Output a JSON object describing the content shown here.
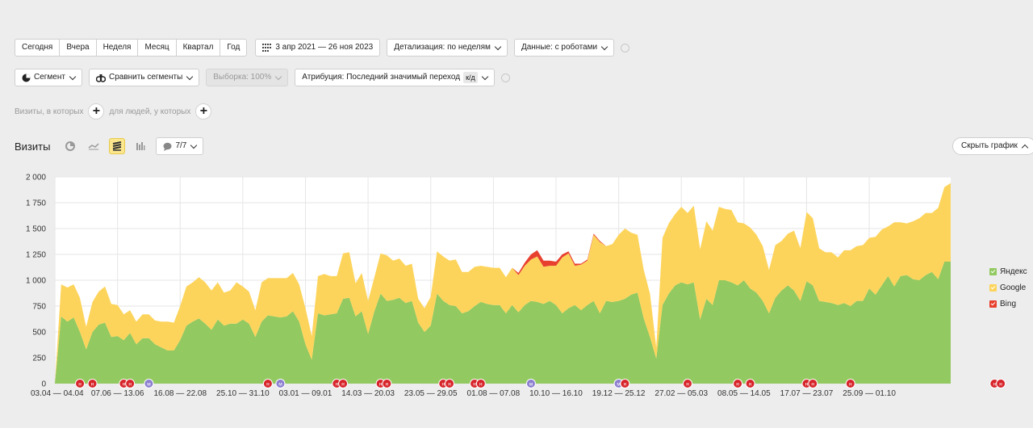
{
  "toolbar": {
    "periods": [
      "Сегодня",
      "Вчера",
      "Неделя",
      "Месяц",
      "Квартал",
      "Год"
    ],
    "date_range": "3 апр 2021 — 26 ноя 2023",
    "detail": "Детализация: по неделям",
    "data_mode": "Данные: с роботами",
    "segment": "Сегмент",
    "compare": "Сравнить сегменты",
    "sample": "Выборка: 100%",
    "attribution": "Атрибуция: Последний значимый переход",
    "attribution_badge": "к/д"
  },
  "filters": {
    "visits_label": "Визиты, в которых",
    "people_label": "для людей, у которых"
  },
  "report": {
    "title": "Визиты",
    "annotations_count": "7/7",
    "hide_chart": "Скрыть график"
  },
  "colors": {
    "yandex": "#92c960",
    "google": "#fdd45b",
    "bing": "#e8402f",
    "grid": "#e6e6e6"
  },
  "chart_data": {
    "type": "area",
    "stacked": true,
    "ylim": [
      0,
      2000
    ],
    "yticks": [
      0,
      250,
      500,
      750,
      1000,
      1250,
      1500,
      1750,
      2000
    ],
    "x_tick_labels": [
      "03.04 — 04.04",
      "07.06 — 13.06",
      "16.08 — 22.08",
      "25.10 — 31.10",
      "03.01 — 09.01",
      "14.03 — 20.03",
      "23.05 — 29.05",
      "01.08 — 07.08",
      "10.10 — 16.10",
      "19.12 — 25.12",
      "27.02 — 05.03",
      "08.05 — 14.05",
      "17.07 — 23.07",
      "25.09 — 01.10"
    ],
    "x_tick_positions": [
      0,
      10,
      20,
      30,
      40,
      50,
      60,
      70,
      80,
      90,
      100,
      110,
      120,
      130
    ],
    "series": [
      {
        "name": "Яндекс",
        "values": [
          0,
          650,
          600,
          640,
          500,
          330,
          500,
          570,
          590,
          450,
          460,
          420,
          490,
          380,
          440,
          440,
          380,
          350,
          320,
          320,
          420,
          560,
          600,
          630,
          580,
          520,
          620,
          560,
          580,
          580,
          620,
          580,
          450,
          600,
          660,
          650,
          640,
          650,
          700,
          600,
          380,
          230,
          680,
          660,
          670,
          680,
          820,
          830,
          650,
          700,
          480,
          700,
          870,
          800,
          810,
          830,
          780,
          800,
          590,
          500,
          560,
          870,
          800,
          760,
          750,
          680,
          700,
          750,
          790,
          770,
          760,
          760,
          680,
          760,
          690,
          760,
          800,
          790,
          770,
          800,
          760,
          680,
          730,
          760,
          710,
          760,
          800,
          680,
          800,
          790,
          800,
          820,
          860,
          880,
          630,
          450,
          240,
          760,
          870,
          950,
          980,
          960,
          980,
          620,
          820,
          760,
          1000,
          1000,
          980,
          950,
          1000,
          920,
          880,
          800,
          680,
          830,
          900,
          950,
          900,
          800,
          990,
          950,
          800,
          790,
          780,
          760,
          780,
          750,
          800,
          800,
          920,
          860,
          950,
          1040,
          940,
          1040,
          1050,
          1010,
          1000,
          1050,
          1080,
          1010,
          1180,
          1180
        ]
      },
      {
        "name": "Google",
        "values": [
          0,
          310,
          330,
          320,
          330,
          220,
          290,
          320,
          350,
          320,
          300,
          250,
          220,
          220,
          230,
          230,
          230,
          250,
          280,
          270,
          330,
          380,
          380,
          400,
          400,
          380,
          360,
          320,
          320,
          400,
          320,
          310,
          260,
          380,
          360,
          370,
          380,
          370,
          370,
          360,
          350,
          230,
          360,
          400,
          370,
          360,
          440,
          440,
          320,
          370,
          320,
          330,
          390,
          440,
          380,
          380,
          360,
          360,
          230,
          230,
          280,
          410,
          430,
          430,
          450,
          400,
          380,
          380,
          350,
          360,
          360,
          360,
          350,
          360,
          360,
          380,
          400,
          440,
          360,
          340,
          380,
          540,
          530,
          380,
          440,
          430,
          640,
          690,
          530,
          560,
          640,
          680,
          600,
          560,
          470,
          420,
          110,
          650,
          680,
          690,
          730,
          690,
          740,
          680,
          750,
          720,
          710,
          690,
          700,
          610,
          550,
          590,
          560,
          530,
          420,
          510,
          480,
          500,
          580,
          510,
          670,
          650,
          510,
          480,
          490,
          460,
          510,
          540,
          530,
          540,
          490,
          560,
          540,
          480,
          620,
          520,
          500,
          560,
          600,
          600,
          570,
          690,
          720,
          760
        ]
      },
      {
        "name": "Bing",
        "values": [
          0,
          0,
          0,
          0,
          0,
          0,
          0,
          0,
          0,
          0,
          0,
          0,
          0,
          0,
          0,
          0,
          0,
          0,
          0,
          0,
          0,
          0,
          0,
          0,
          0,
          0,
          0,
          0,
          0,
          0,
          0,
          0,
          0,
          0,
          0,
          0,
          0,
          0,
          0,
          0,
          0,
          0,
          0,
          0,
          0,
          0,
          0,
          0,
          0,
          0,
          0,
          0,
          0,
          0,
          0,
          0,
          0,
          0,
          0,
          0,
          0,
          0,
          0,
          0,
          0,
          0,
          0,
          0,
          0,
          0,
          0,
          0,
          0,
          0,
          20,
          30,
          50,
          60,
          60,
          50,
          40,
          30,
          20,
          20,
          10,
          10,
          10,
          10,
          0,
          0,
          0,
          0,
          0,
          0,
          0,
          0,
          0,
          0,
          0,
          0,
          0,
          0,
          0,
          0,
          0,
          0,
          0,
          0,
          0,
          0,
          0,
          0,
          0,
          0,
          0,
          0,
          0,
          0,
          0,
          0,
          0,
          0,
          0,
          0,
          0,
          0,
          0,
          0,
          0,
          0,
          0,
          0,
          0,
          0,
          0,
          0,
          0,
          0,
          0,
          0,
          0,
          0,
          0,
          0
        ]
      }
    ],
    "legend_position": "right",
    "grid": true,
    "annotation_markers": [
      {
        "i": 4,
        "t": "н",
        "c": "red"
      },
      {
        "i": 6,
        "t": "н",
        "c": "red"
      },
      {
        "i": 11,
        "t": "н",
        "c": "red"
      },
      {
        "i": 12,
        "t": "н",
        "c": "red"
      },
      {
        "i": 15,
        "t": "м",
        "c": "purple"
      },
      {
        "i": 34,
        "t": "н",
        "c": "red"
      },
      {
        "i": 36,
        "t": "м",
        "c": "purple"
      },
      {
        "i": 45,
        "t": "н",
        "c": "red"
      },
      {
        "i": 46,
        "t": "н",
        "c": "red"
      },
      {
        "i": 52,
        "t": "н",
        "c": "red"
      },
      {
        "i": 53,
        "t": "н",
        "c": "red"
      },
      {
        "i": 62,
        "t": "н",
        "c": "red"
      },
      {
        "i": 63,
        "t": "н",
        "c": "red"
      },
      {
        "i": 67,
        "t": "н",
        "c": "red"
      },
      {
        "i": 68,
        "t": "н",
        "c": "red"
      },
      {
        "i": 76,
        "t": "м",
        "c": "purple"
      },
      {
        "i": 90,
        "t": "м",
        "c": "purple"
      },
      {
        "i": 91,
        "t": "н",
        "c": "red"
      },
      {
        "i": 101,
        "t": "н",
        "c": "red"
      },
      {
        "i": 109,
        "t": "н",
        "c": "red"
      },
      {
        "i": 111,
        "t": "н",
        "c": "red"
      },
      {
        "i": 120,
        "t": "н",
        "c": "red"
      },
      {
        "i": 121,
        "t": "н",
        "c": "red"
      },
      {
        "i": 127,
        "t": "н",
        "c": "red"
      },
      {
        "i": 150,
        "t": "н",
        "c": "red"
      },
      {
        "i": 151,
        "t": "н",
        "c": "red"
      }
    ]
  }
}
